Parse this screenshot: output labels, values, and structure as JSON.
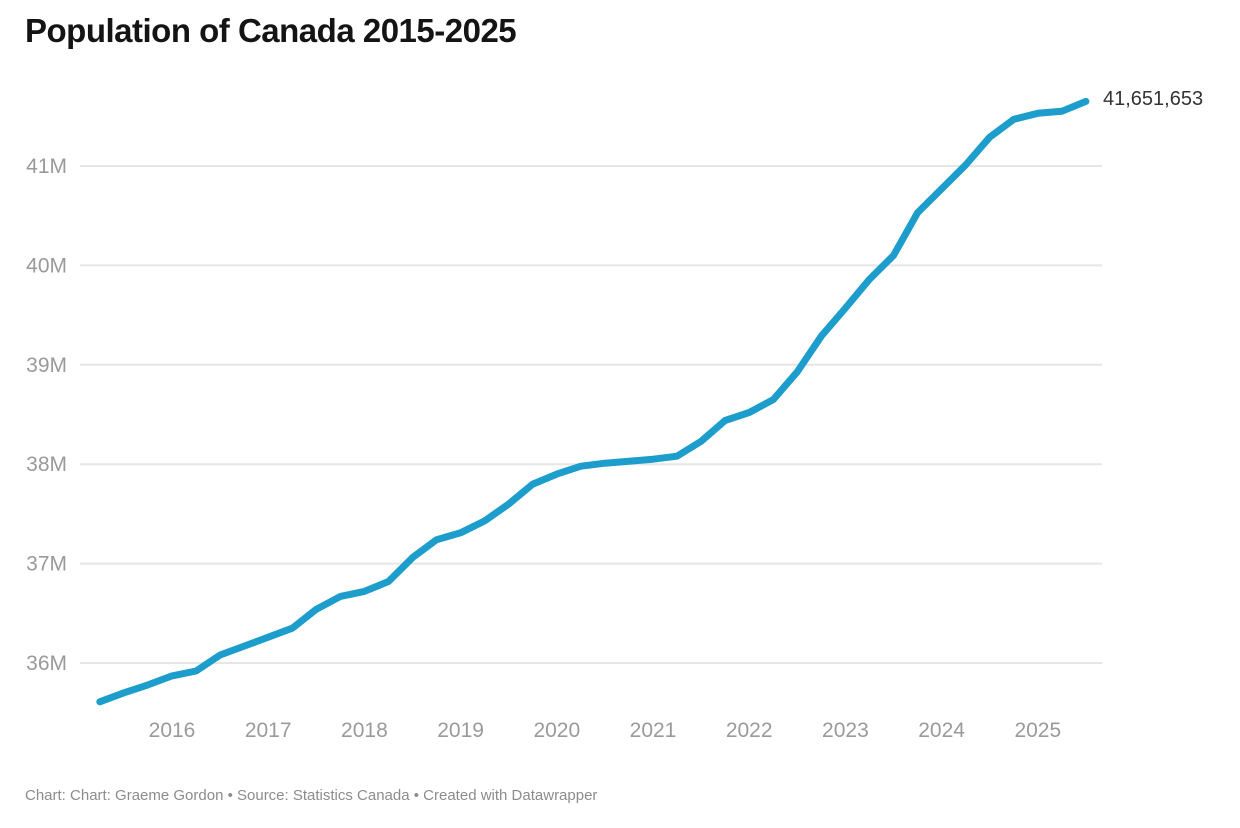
{
  "page": {
    "title": "Population of Canada 2015-2025",
    "footer": "Chart: Chart: Graeme Gordon • Source: Statistics Canada • Created with Datawrapper"
  },
  "colors": {
    "line": "#1d9dcc",
    "grid": "#e6e6e6",
    "tick_text": "#9a9a9a",
    "title_text": "#141414",
    "end_label_text": "#333333",
    "footer_text": "#8c8c8c",
    "background": "#ffffff"
  },
  "chart_data": {
    "type": "line",
    "title": "Population of Canada 2015-2025",
    "series_name": "Population of Canada",
    "xlabel": "",
    "ylabel": "",
    "grid": "horizontal",
    "legend": "none",
    "x_unit": "quarter",
    "y_unit": "persons (millions)",
    "xlim_years": [
      2015.17,
      2025.62
    ],
    "ylim_millions": [
      35.55,
      41.78
    ],
    "x": [
      "2015-04-01",
      "2015-07-01",
      "2015-10-01",
      "2016-01-01",
      "2016-04-01",
      "2016-07-01",
      "2016-10-01",
      "2017-01-01",
      "2017-04-01",
      "2017-07-01",
      "2017-10-01",
      "2018-01-01",
      "2018-04-01",
      "2018-07-01",
      "2018-10-01",
      "2019-01-01",
      "2019-04-01",
      "2019-07-01",
      "2019-10-01",
      "2020-01-01",
      "2020-04-01",
      "2020-07-01",
      "2020-10-01",
      "2021-01-01",
      "2021-04-01",
      "2021-07-01",
      "2021-10-01",
      "2022-01-01",
      "2022-04-01",
      "2022-07-01",
      "2022-10-01",
      "2023-01-01",
      "2023-04-01",
      "2023-07-01",
      "2023-10-01",
      "2024-01-01",
      "2024-04-01",
      "2024-07-01",
      "2024-10-01",
      "2025-01-01",
      "2025-04-01",
      "2025-07-01"
    ],
    "values_millions": [
      35.61,
      35.7,
      35.78,
      35.87,
      35.92,
      36.08,
      36.17,
      36.26,
      36.35,
      36.54,
      36.67,
      36.72,
      36.82,
      37.06,
      37.24,
      37.31,
      37.43,
      37.6,
      37.8,
      37.9,
      37.98,
      38.01,
      38.03,
      38.05,
      38.08,
      38.23,
      38.44,
      38.52,
      38.65,
      38.93,
      39.29,
      39.57,
      39.86,
      40.1,
      40.53,
      40.77,
      41.01,
      41.29,
      41.47,
      41.53,
      41.55,
      41.65
    ],
    "final_value_label": "41,651,653",
    "final_value_exact": 41651653,
    "y_ticks": [
      {
        "value": 36,
        "label": "36M"
      },
      {
        "value": 37,
        "label": "37M"
      },
      {
        "value": 38,
        "label": "38M"
      },
      {
        "value": 39,
        "label": "39M"
      },
      {
        "value": 40,
        "label": "40M"
      },
      {
        "value": 41,
        "label": "41M"
      }
    ],
    "x_ticks": [
      {
        "value": 2016,
        "label": "2016"
      },
      {
        "value": 2017,
        "label": "2017"
      },
      {
        "value": 2018,
        "label": "2018"
      },
      {
        "value": 2019,
        "label": "2019"
      },
      {
        "value": 2020,
        "label": "2020"
      },
      {
        "value": 2021,
        "label": "2021"
      },
      {
        "value": 2022,
        "label": "2022"
      },
      {
        "value": 2023,
        "label": "2023"
      },
      {
        "value": 2024,
        "label": "2024"
      },
      {
        "value": 2025,
        "label": "2025"
      }
    ]
  }
}
